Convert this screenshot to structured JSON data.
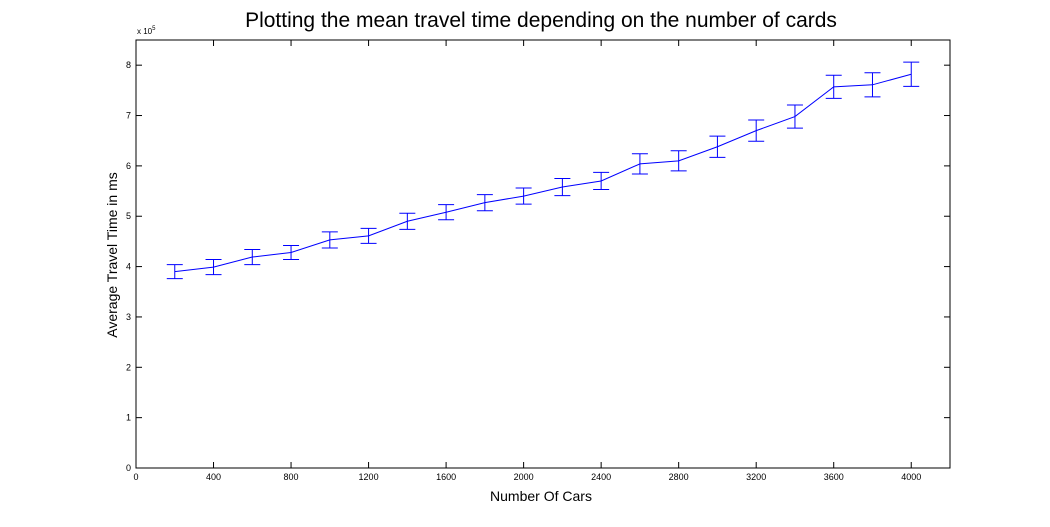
{
  "chart_data": {
    "type": "line",
    "title": "Plotting the mean travel time depending on the number of cards",
    "xlabel": "Number Of Cars",
    "ylabel": "Average Travel Time in ms",
    "y_multiplier_label": "x 10",
    "y_multiplier_exponent": "5",
    "xlim": [
      0,
      4200
    ],
    "ylim": [
      0,
      8.5
    ],
    "x_ticks": [
      0,
      400,
      800,
      1200,
      1600,
      2000,
      2400,
      2800,
      3200,
      3600,
      4000
    ],
    "x_tick_labels": [
      "0",
      "400",
      "800",
      "1200",
      "1600",
      "2000",
      "2400",
      "2800",
      "3200",
      "3600",
      "4000"
    ],
    "y_ticks": [
      0,
      1,
      2,
      3,
      4,
      5,
      6,
      7,
      8
    ],
    "y_tick_labels": [
      "0",
      "1",
      "2",
      "3",
      "4",
      "5",
      "6",
      "7",
      "8"
    ],
    "grid": false,
    "series_color": "#0000ff",
    "series": [
      {
        "x": [
          200,
          400,
          600,
          800,
          1000,
          1200,
          1400,
          1600,
          1800,
          2000,
          2200,
          2400,
          2600,
          2800,
          3000,
          3200,
          3400,
          3600,
          3800,
          4000
        ],
        "y": [
          3.9,
          3.99,
          4.19,
          4.28,
          4.53,
          4.61,
          4.9,
          5.08,
          5.27,
          5.4,
          5.58,
          5.7,
          6.04,
          6.1,
          6.38,
          6.7,
          6.98,
          7.57,
          7.61,
          7.82
        ],
        "y_error": [
          0.14,
          0.15,
          0.15,
          0.14,
          0.16,
          0.15,
          0.16,
          0.15,
          0.16,
          0.16,
          0.17,
          0.17,
          0.2,
          0.2,
          0.21,
          0.21,
          0.23,
          0.23,
          0.24,
          0.24
        ]
      }
    ]
  }
}
